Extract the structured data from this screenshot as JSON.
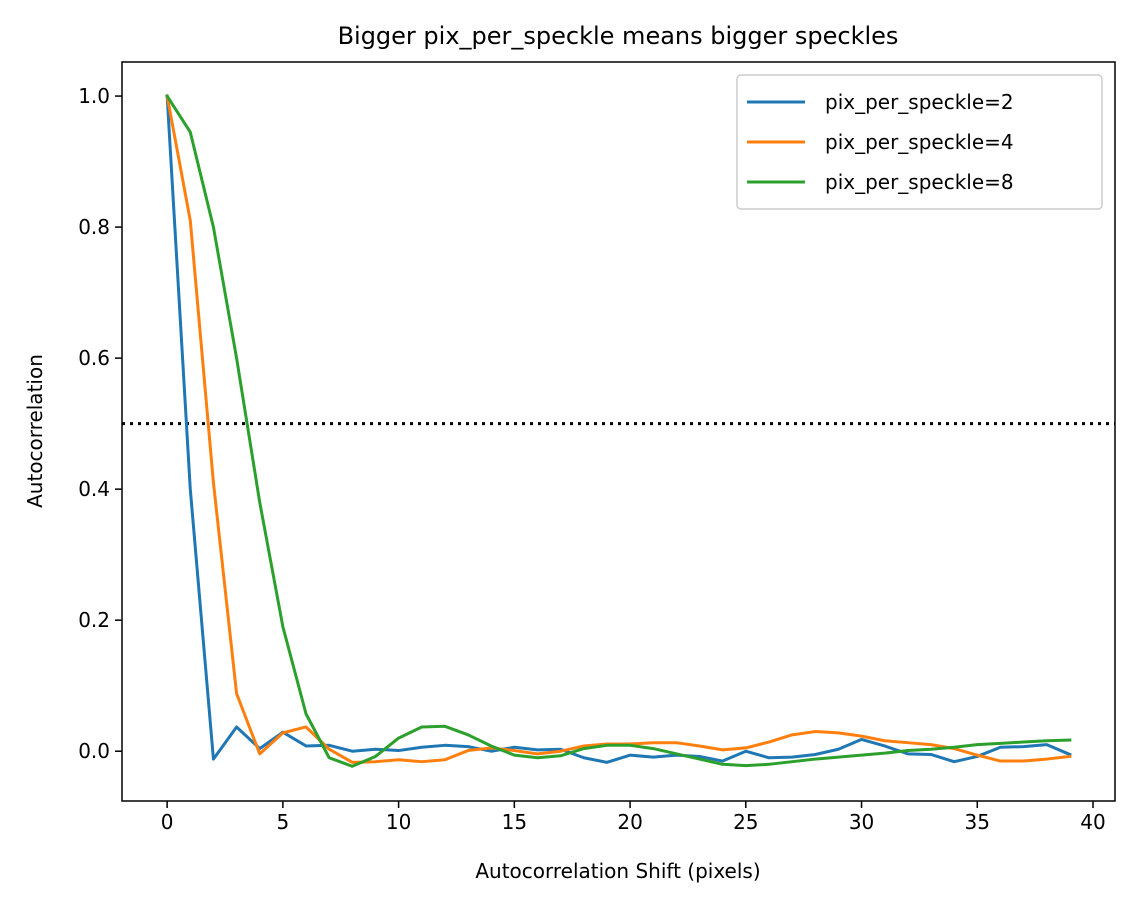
{
  "chart_data": {
    "type": "line",
    "title": "Bigger pix_per_speckle means bigger speckles",
    "xlabel": "Autocorrelation Shift (pixels)",
    "ylabel": "Autocorrelation",
    "xlim": [
      -1.95,
      40.95
    ],
    "ylim": [
      -0.076,
      1.052
    ],
    "xticks": [
      0,
      5,
      10,
      15,
      20,
      25,
      30,
      35,
      40
    ],
    "xtick_labels": [
      "0",
      "5",
      "10",
      "15",
      "20",
      "25",
      "30",
      "35",
      "40"
    ],
    "yticks": [
      0.0,
      0.2,
      0.4,
      0.6,
      0.8,
      1.0
    ],
    "ytick_labels": [
      "0.0",
      "0.2",
      "0.4",
      "0.6",
      "0.8",
      "1.0"
    ],
    "grid": false,
    "legend_position": "top-right",
    "reference_line": {
      "y": 0.5,
      "style": "dotted",
      "color": "#000000"
    },
    "x": [
      0,
      1,
      2,
      3,
      4,
      5,
      6,
      7,
      8,
      9,
      10,
      11,
      12,
      13,
      14,
      15,
      16,
      17,
      18,
      19,
      20,
      21,
      22,
      23,
      24,
      25,
      26,
      27,
      28,
      29,
      30,
      31,
      32,
      33,
      34,
      35,
      36,
      37,
      38,
      39
    ],
    "series": [
      {
        "name": "pix_per_speckle=2",
        "color": "#1f77b4",
        "values": [
          1.0,
          0.4,
          -0.012,
          0.037,
          0.004,
          0.029,
          0.008,
          0.009,
          0.0,
          0.003,
          0.001,
          0.006,
          0.009,
          0.007,
          0.0,
          0.006,
          0.002,
          0.003,
          -0.01,
          -0.017,
          -0.006,
          -0.009,
          -0.006,
          -0.008,
          -0.015,
          0.0,
          -0.01,
          -0.009,
          -0.005,
          0.003,
          0.018,
          0.008,
          -0.004,
          -0.005,
          -0.016,
          -0.008,
          0.006,
          0.007,
          0.01,
          -0.005
        ]
      },
      {
        "name": "pix_per_speckle=4",
        "color": "#ff7f0e",
        "values": [
          1.0,
          0.81,
          0.41,
          0.088,
          -0.004,
          0.028,
          0.037,
          0.003,
          -0.017,
          -0.016,
          -0.013,
          -0.016,
          -0.013,
          0.001,
          0.005,
          0.001,
          -0.004,
          0.0,
          0.008,
          0.011,
          0.011,
          0.013,
          0.013,
          0.008,
          0.002,
          0.005,
          0.014,
          0.025,
          0.03,
          0.028,
          0.023,
          0.016,
          0.013,
          0.01,
          0.004,
          -0.006,
          -0.015,
          -0.015,
          -0.012,
          -0.008
        ]
      },
      {
        "name": "pix_per_speckle=8",
        "color": "#2ca02c",
        "values": [
          1.0,
          0.945,
          0.8,
          0.6,
          0.38,
          0.19,
          0.057,
          -0.01,
          -0.023,
          -0.008,
          0.02,
          0.037,
          0.038,
          0.025,
          0.008,
          -0.006,
          -0.01,
          -0.007,
          0.004,
          0.009,
          0.009,
          0.004,
          -0.004,
          -0.012,
          -0.02,
          -0.022,
          -0.02,
          -0.016,
          -0.012,
          -0.009,
          -0.006,
          -0.003,
          0.001,
          0.003,
          0.006,
          0.01,
          0.012,
          0.014,
          0.016,
          0.017
        ]
      }
    ]
  }
}
